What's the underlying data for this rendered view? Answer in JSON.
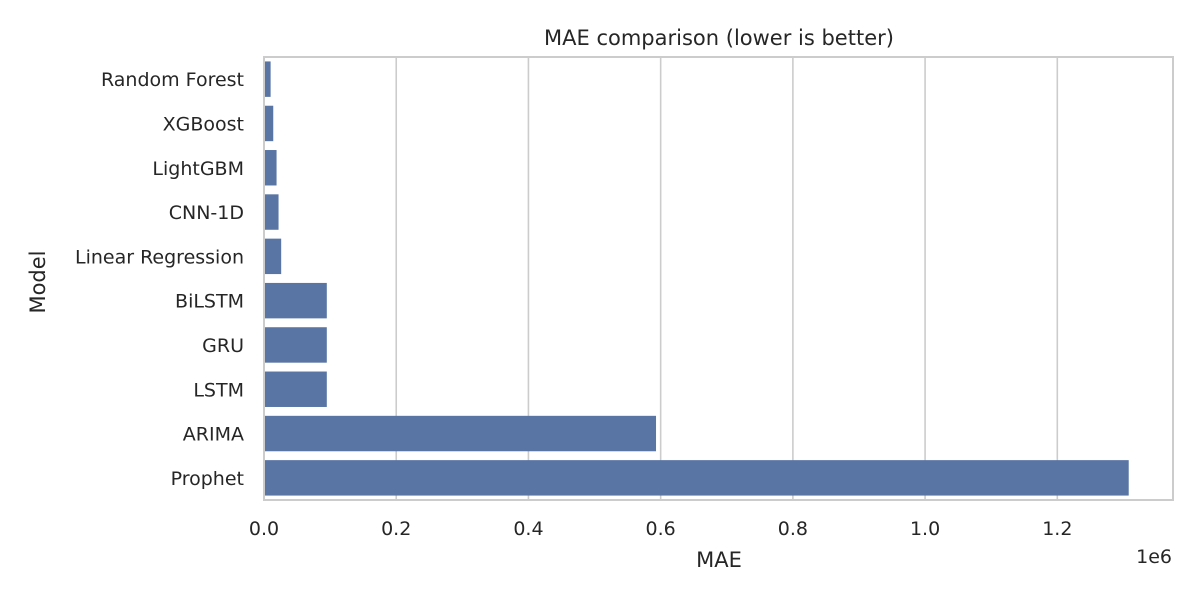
{
  "chart_data": {
    "type": "bar",
    "orientation": "horizontal",
    "title": "MAE comparison (lower is better)",
    "xlabel": "MAE",
    "ylabel": "Model",
    "x_offset_label": "1e6",
    "categories": [
      "Random Forest",
      "XGBoost",
      "LightGBM",
      "CNN-1D",
      "Linear Regression",
      "BiLSTM",
      "GRU",
      "LSTM",
      "ARIMA",
      "Prophet"
    ],
    "values": [
      10000,
      14000,
      19000,
      22000,
      26000,
      95000,
      95000,
      95000,
      593000,
      1308000
    ],
    "value_multiplier": 1000000,
    "xlim": [
      0,
      1.375
    ],
    "xticks": [
      0.0,
      0.2,
      0.4,
      0.6,
      0.8,
      1.0,
      1.2
    ],
    "xtick_labels": [
      "0.0",
      "0.2",
      "0.4",
      "0.6",
      "0.8",
      "1.0",
      "1.2"
    ],
    "grid": "vertical",
    "bar_color": "#5875a4",
    "frame_color": "#cccccc",
    "grid_color": "#cccccc",
    "text_color": "#262626"
  }
}
